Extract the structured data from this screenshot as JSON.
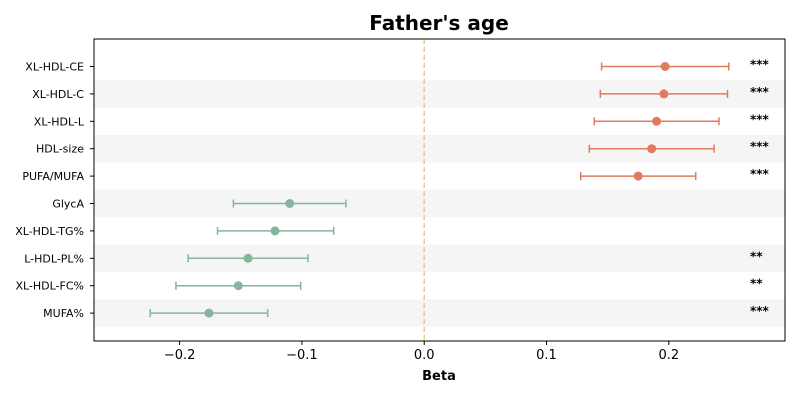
{
  "chart_data": {
    "type": "forest",
    "title": "Father's age",
    "xlabel": "Beta",
    "ylabel": "",
    "xlim": [
      -0.27,
      0.295
    ],
    "xticks": [
      -0.2,
      -0.1,
      0.0,
      0.1,
      0.2
    ],
    "xtick_labels": [
      "−0.2",
      "−0.1",
      "0.0",
      "0.1",
      "0.2"
    ],
    "reference_line": 0.0,
    "grid": false,
    "colors": {
      "positive": "#e07b5f",
      "negative": "#86b59c",
      "reference": "#f5c77e",
      "band": "#f5f5f5"
    },
    "categories": [
      "XL-HDL-CE",
      "XL-HDL-C",
      "XL-HDL-L",
      "HDL-size",
      "PUFA/MUFA",
      "GlycA",
      "XL-HDL-TG%",
      "L-HDL-PL%",
      "XL-HDL-FC%",
      "MUFA%"
    ],
    "beta": [
      0.197,
      0.196,
      0.19,
      0.186,
      0.175,
      -0.11,
      -0.122,
      -0.144,
      -0.152,
      -0.176
    ],
    "ci_low": [
      0.145,
      0.144,
      0.139,
      0.135,
      0.128,
      -0.156,
      -0.169,
      -0.193,
      -0.203,
      -0.224
    ],
    "ci_high": [
      0.249,
      0.248,
      0.241,
      0.237,
      0.222,
      -0.064,
      -0.074,
      -0.095,
      -0.101,
      -0.128
    ],
    "significance": [
      "***",
      "***",
      "***",
      "***",
      "***",
      "",
      "",
      "**",
      "**",
      "***"
    ]
  }
}
